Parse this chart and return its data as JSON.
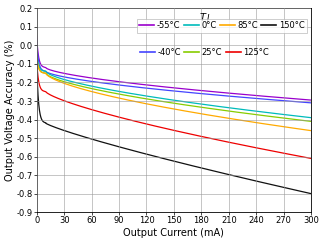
{
  "title": "T J",
  "xlabel": "Output Current (mA)",
  "ylabel": "Output Voltage Accuracy (%)",
  "xlim": [
    0,
    300
  ],
  "ylim": [
    -0.9,
    0.2
  ],
  "xticks": [
    0,
    30,
    60,
    90,
    120,
    150,
    180,
    210,
    240,
    270,
    300
  ],
  "yticks": [
    -0.9,
    -0.8,
    -0.7,
    -0.6,
    -0.5,
    -0.4,
    -0.3,
    -0.2,
    -0.1,
    0.0,
    0.1,
    0.2
  ],
  "curves": [
    {
      "label": "-55°C",
      "color": "#9900cc",
      "x0_val": 0.05,
      "x0_end": 3,
      "settle_val": -0.12,
      "end_val": -0.295,
      "alpha": 0.65
    },
    {
      "label": "-40°C",
      "color": "#4444ff",
      "x0_val": 0.02,
      "x0_end": 3,
      "settle_val": -0.14,
      "end_val": -0.31,
      "alpha": 0.65
    },
    {
      "label": "0°C",
      "color": "#00bbbb",
      "x0_val": -0.04,
      "x0_end": 3,
      "settle_val": -0.14,
      "end_val": -0.39,
      "alpha": 0.65
    },
    {
      "label": "25°C",
      "color": "#88cc00",
      "x0_val": -0.06,
      "x0_end": 3,
      "settle_val": -0.15,
      "end_val": -0.41,
      "alpha": 0.65
    },
    {
      "label": "85°C",
      "color": "#ffaa00",
      "x0_val": -0.07,
      "x0_end": 3,
      "settle_val": -0.15,
      "end_val": -0.46,
      "alpha": 0.65
    },
    {
      "label": "125°C",
      "color": "#ee0000",
      "x0_val": -0.08,
      "x0_end": 3,
      "settle_val": -0.25,
      "end_val": -0.61,
      "alpha": 0.75
    },
    {
      "label": "150°C",
      "color": "#111111",
      "x0_val": -0.1,
      "x0_end": 3,
      "settle_val": -0.42,
      "end_val": -0.8,
      "alpha": 0.85
    }
  ],
  "background_color": "#ffffff",
  "grid_color": "#999999",
  "label_fontsize": 7,
  "tick_fontsize": 6,
  "legend_fontsize": 6,
  "title_fontsize": 7,
  "legend_row1_labels": [
    "-55°C",
    "0°C",
    "85°C",
    "150°C"
  ],
  "legend_row2_labels": [
    "-40°C",
    "25°C",
    "125°C"
  ]
}
